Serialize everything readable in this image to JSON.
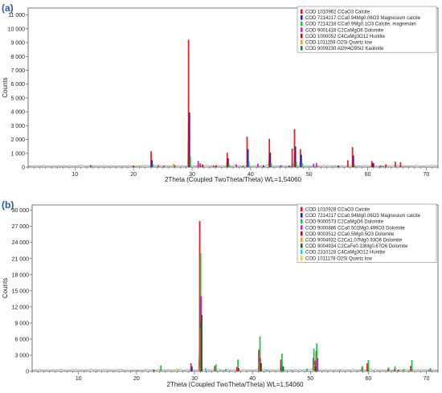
{
  "chart_data": [
    {
      "panel": "(a)",
      "type": "bar",
      "title": "",
      "xlabel": "2Theta (Coupled TwoTheta/Theta) WL=1,54060",
      "ylabel": "Counts",
      "xlim": [
        2,
        72
      ],
      "ylim": [
        0,
        11500
      ],
      "xticks": [
        10,
        20,
        30,
        40,
        50,
        60,
        70
      ],
      "yticks": [
        0,
        1000,
        2000,
        3000,
        4000,
        5000,
        6000,
        7000,
        8000,
        9000,
        10000,
        11000
      ],
      "ytick_labels": [
        "0",
        "1 000",
        "2 000",
        "3 000",
        "4 000",
        "5 000",
        "6 000",
        "7 000",
        "8 000",
        "9 000",
        "10 000",
        "11 000"
      ],
      "legend_position": "top-right",
      "series": [
        {
          "name": "COD 1010962 CCaO3 Calcite",
          "color": "#e8141c",
          "peaks": [
            [
              23.0,
              1150
            ],
            [
              29.4,
              9200
            ],
            [
              31.4,
              280
            ],
            [
              36.0,
              1050
            ],
            [
              39.4,
              2200
            ],
            [
              43.2,
              2050
            ],
            [
              47.1,
              1350
            ],
            [
              47.5,
              2750
            ],
            [
              48.5,
              1300
            ],
            [
              56.6,
              500
            ],
            [
              57.4,
              1450
            ],
            [
              60.7,
              450
            ],
            [
              61.0,
              300
            ],
            [
              63.1,
              200
            ],
            [
              64.7,
              400
            ],
            [
              65.6,
              350
            ]
          ]
        },
        {
          "name": "COD 7214217 CCa0.94Mg0.06O3 Magnesium calcite",
          "color": "#1a1ab8",
          "peaks": [
            [
              23.1,
              500
            ],
            [
              29.5,
              3950
            ],
            [
              36.1,
              650
            ],
            [
              39.5,
              1300
            ],
            [
              43.3,
              1050
            ],
            [
              47.6,
              1500
            ],
            [
              48.6,
              900
            ],
            [
              57.5,
              850
            ],
            [
              60.8,
              300
            ]
          ]
        },
        {
          "name": "COD 7214218 CCa0.9Mg0.1O3 Calcite, magnesian",
          "color": "#18c040",
          "peaks": [
            [
              23.2,
              200
            ],
            [
              29.6,
              800
            ],
            [
              36.2,
              250
            ],
            [
              39.6,
              400
            ],
            [
              43.4,
              300
            ],
            [
              47.7,
              400
            ],
            [
              48.7,
              300
            ],
            [
              57.6,
              200
            ]
          ]
        },
        {
          "name": "COD 9001418 C2CaMgO6 Dolomite",
          "color": "#c41fc4",
          "peaks": [
            [
              24.1,
              150
            ],
            [
              30.9,
              450
            ],
            [
              33.5,
              120
            ],
            [
              37.4,
              200
            ],
            [
              41.1,
              250
            ],
            [
              45.0,
              150
            ],
            [
              50.6,
              250
            ],
            [
              51.1,
              300
            ]
          ]
        },
        {
          "name": "COD 1000052 C4CaMg3O12 Huntite",
          "color": "#8b1a1a",
          "peaks": [
            [
              19.8,
              100
            ],
            [
              26.8,
              150
            ],
            [
              31.6,
              200
            ],
            [
              33.9,
              120
            ],
            [
              42.0,
              120
            ],
            [
              46.4,
              100
            ],
            [
              54.8,
              120
            ],
            [
              62.0,
              100
            ]
          ]
        },
        {
          "name": "COD 1011159 O2Si Quartz low",
          "color": "#f0a020",
          "peaks": [
            [
              20.9,
              100
            ],
            [
              26.6,
              250
            ],
            [
              36.5,
              80
            ],
            [
              50.1,
              80
            ],
            [
              60.0,
              60
            ]
          ]
        },
        {
          "name": "COD 9009230 Al2H4O9Si2 Kaolinite",
          "color": "#1a8040",
          "peaks": [
            [
              12.4,
              150
            ],
            [
              24.9,
              120
            ],
            [
              38.4,
              80
            ],
            [
              62.3,
              60
            ]
          ]
        }
      ]
    },
    {
      "panel": "(b)",
      "type": "bar",
      "title": "",
      "xlabel": "2Theta (Coupled TwoTheta/Theta) WL=1,54060",
      "ylabel": "Counts",
      "xlim": [
        2,
        72
      ],
      "ylim": [
        0,
        31000
      ],
      "xticks": [
        10,
        20,
        30,
        40,
        50,
        60,
        70
      ],
      "yticks": [
        0,
        3000,
        6000,
        9000,
        12000,
        15000,
        18000,
        21000,
        24000,
        27000,
        30000
      ],
      "ytick_labels": [
        "0",
        "3 000",
        "6 000",
        "9 000",
        "12 000",
        "15 000",
        "18 000",
        "21 000",
        "24 000",
        "27 000",
        "30 000"
      ],
      "legend_position": "top-right",
      "series": [
        {
          "name": "COD 1010928 CCaO3 Calcite",
          "color": "#e8141c",
          "peaks": [
            [
              23.0,
              300
            ],
            [
              29.4,
              1500
            ],
            [
              30.9,
              28000
            ],
            [
              33.5,
              1000
            ],
            [
              37.3,
              800
            ],
            [
              41.1,
              4000
            ],
            [
              44.9,
              2200
            ],
            [
              50.5,
              2500
            ],
            [
              51.0,
              3800
            ],
            [
              58.9,
              700
            ],
            [
              59.8,
              1500
            ],
            [
              63.4,
              500
            ],
            [
              64.5,
              400
            ],
            [
              65.2,
              300
            ],
            [
              67.3,
              1000
            ],
            [
              70.5,
              200
            ]
          ]
        },
        {
          "name": "COD 7214217 CCa0.94Mg0.06O3 Magnesium calcite",
          "color": "#1a1ab8",
          "peaks": [
            [
              29.5,
              900
            ],
            [
              31.0,
              13500
            ],
            [
              41.2,
              2200
            ],
            [
              45.0,
              1400
            ],
            [
              50.6,
              1500
            ],
            [
              51.1,
              2000
            ],
            [
              59.9,
              600
            ]
          ]
        },
        {
          "name": "COD 9000573 C2CaMgO6 Dolomite",
          "color": "#18c040",
          "peaks": [
            [
              24.1,
              1100
            ],
            [
              30.95,
              22000
            ],
            [
              33.6,
              1300
            ],
            [
              35.3,
              400
            ],
            [
              37.4,
              2200
            ],
            [
              41.2,
              6500
            ],
            [
              45.0,
              3300
            ],
            [
              49.3,
              500
            ],
            [
              50.5,
              4200
            ],
            [
              51.0,
              5200
            ],
            [
              58.9,
              1000
            ],
            [
              59.9,
              2100
            ],
            [
              63.4,
              700
            ],
            [
              64.5,
              900
            ],
            [
              66.0,
              400
            ],
            [
              67.4,
              2100
            ],
            [
              70.6,
              600
            ]
          ]
        },
        {
          "name": "COD 9000886 CCa0.501Mg0.499O3 Dolomite",
          "color": "#c41fc4",
          "peaks": [
            [
              31.0,
              14000
            ],
            [
              41.2,
              2500
            ],
            [
              50.6,
              2000
            ],
            [
              51.1,
              2500
            ]
          ]
        },
        {
          "name": "COD 9003512 CCa0.5Mg0.5O3 Dolomite",
          "color": "#8b1a1a",
          "peaks": [
            [
              31.05,
              10500
            ],
            [
              37.4,
              600
            ],
            [
              41.3,
              1500
            ],
            [
              45.1,
              800
            ],
            [
              50.7,
              900
            ]
          ]
        },
        {
          "name": "COD 9004932 C2Ca1.07Mg0.93O6 Dolomite",
          "color": "#f0a020",
          "peaks": [
            [
              30.8,
              8000
            ],
            [
              41.0,
              1800
            ],
            [
              50.4,
              1200
            ]
          ]
        },
        {
          "name": "COD 9004934 C2CaFe0.33Mg0.67O6 Dolomite",
          "color": "#1a6030",
          "peaks": [
            [
              30.85,
              9000
            ],
            [
              41.05,
              1700
            ],
            [
              45.0,
              900
            ],
            [
              50.5,
              1000
            ]
          ]
        },
        {
          "name": "COD 2310128 C4CaMg3O12 Huntite",
          "color": "#30c8e8",
          "peaks": [
            [
              19.8,
              300
            ],
            [
              26.8,
              400
            ],
            [
              31.6,
              600
            ],
            [
              34.0,
              300
            ],
            [
              42.0,
              300
            ],
            [
              46.4,
              200
            ],
            [
              54.8,
              300
            ]
          ]
        },
        {
          "name": "COD 1011178 O2Si Quartz low",
          "color": "#e8d020",
          "peaks": [
            [
              20.9,
              200
            ],
            [
              26.6,
              500
            ],
            [
              36.5,
              150
            ],
            [
              50.1,
              150
            ],
            [
              59.9,
              100
            ]
          ]
        }
      ]
    }
  ]
}
